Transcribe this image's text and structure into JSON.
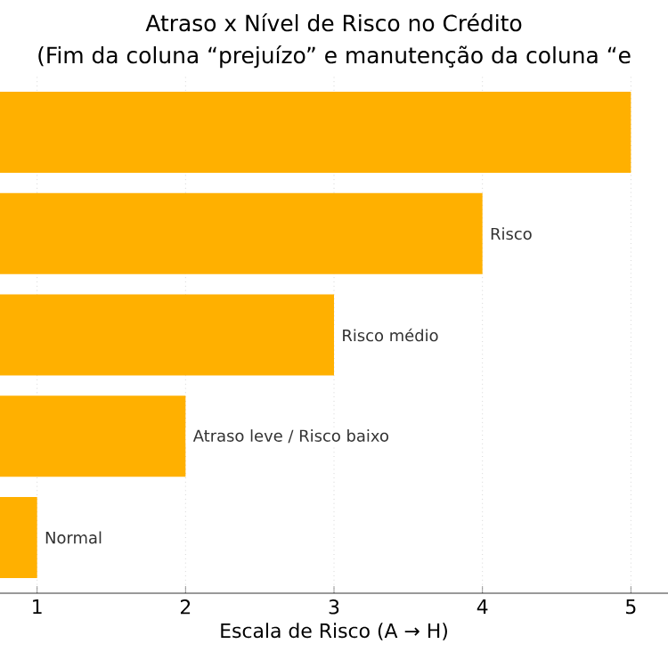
{
  "chart_data": {
    "type": "bar",
    "orientation": "horizontal",
    "title": "Atraso x Nível de Risco no Crédito",
    "subtitle": "(Fim da coluna “prejuízo” e manutenção da coluna “e",
    "xlabel": "Escala de Risco (A → H)",
    "categories": [
      null,
      "Risco",
      "Risco médio",
      "Atraso leve / Risco baixo",
      "Normal"
    ],
    "values": [
      5,
      4,
      3,
      2,
      1
    ],
    "color": "#ffb000",
    "xlim": [
      0.75,
      5.25
    ],
    "xticks": [
      1,
      2,
      3,
      4,
      5
    ],
    "grid": true,
    "tick_labels": "x"
  }
}
